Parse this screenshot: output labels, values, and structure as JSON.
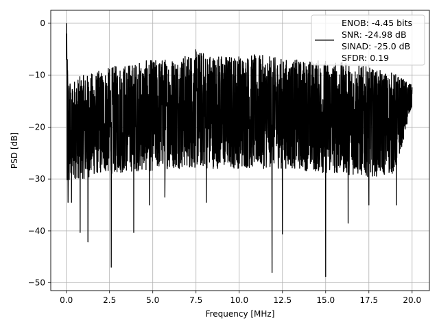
{
  "chart_data": {
    "type": "line",
    "xlabel": "Frequency [MHz]",
    "ylabel": "PSD [dB]",
    "xlim": [
      -0.9,
      21.0
    ],
    "ylim": [
      -51.5,
      2.5
    ],
    "xticks": [
      0.0,
      2.5,
      5.0,
      7.5,
      10.0,
      12.5,
      15.0,
      17.5,
      20.0
    ],
    "xtick_labels": [
      "0.0",
      "2.5",
      "5.0",
      "7.5",
      "10.0",
      "12.5",
      "15.0",
      "17.5",
      "20.0"
    ],
    "yticks": [
      0,
      -10,
      -20,
      -30,
      -40,
      -50
    ],
    "ytick_labels": [
      "0",
      "−10",
      "−20",
      "−30",
      "−40",
      "−50"
    ],
    "grid": true,
    "legend": {
      "placement": "top-right",
      "lines": [
        "ENOB: -4.45 bits",
        "SNR: -24.98 dB",
        "SINAD: -25.0 dB",
        "SFDR: 0.19"
      ]
    },
    "series": [
      {
        "color": "#000000",
        "band": {
          "x": [
            0.0,
            0.05,
            0.1,
            0.15,
            0.3,
            0.5,
            1.0,
            2.0,
            3.0,
            4.0,
            5.0,
            6.0,
            7.0,
            7.5,
            8.0,
            9.0,
            10.0,
            11.0,
            12.0,
            13.0,
            14.0,
            15.0,
            16.0,
            17.0,
            18.0,
            19.0,
            20.0
          ],
          "upper": [
            0.0,
            -4.0,
            -7.0,
            -10.0,
            -11.0,
            -10.5,
            -10.0,
            -9.0,
            -8.0,
            -7.5,
            -7.0,
            -6.5,
            -6.0,
            -5.0,
            -5.5,
            -6.0,
            -6.0,
            -6.0,
            -6.5,
            -7.0,
            -7.0,
            -7.0,
            -7.5,
            -8.0,
            -9.0,
            -9.5,
            -12.0
          ],
          "lower": [
            -4.0,
            -34.0,
            -33.0,
            -32.0,
            -31.0,
            -30.0,
            -30.0,
            -29.0,
            -29.0,
            -28.5,
            -28.5,
            -28.0,
            -28.0,
            -28.0,
            -28.0,
            -28.0,
            -28.0,
            -28.0,
            -28.0,
            -28.0,
            -28.5,
            -29.0,
            -29.0,
            -29.5,
            -29.5,
            -29.0,
            -16.0
          ]
        },
        "dips": [
          {
            "x": 0.1,
            "y": -34.5
          },
          {
            "x": 0.3,
            "y": -34.5
          },
          {
            "x": 0.8,
            "y": -40.3
          },
          {
            "x": 1.25,
            "y": -42.1
          },
          {
            "x": 2.6,
            "y": -47.0
          },
          {
            "x": 3.9,
            "y": -40.3
          },
          {
            "x": 4.8,
            "y": -35.0
          },
          {
            "x": 5.7,
            "y": -33.5
          },
          {
            "x": 8.1,
            "y": -34.5
          },
          {
            "x": 11.9,
            "y": -48.0
          },
          {
            "x": 12.5,
            "y": -40.6
          },
          {
            "x": 15.0,
            "y": -48.8
          },
          {
            "x": 16.3,
            "y": -38.5
          },
          {
            "x": 17.5,
            "y": -35.0
          },
          {
            "x": 19.1,
            "y": -35.0
          }
        ]
      }
    ]
  }
}
